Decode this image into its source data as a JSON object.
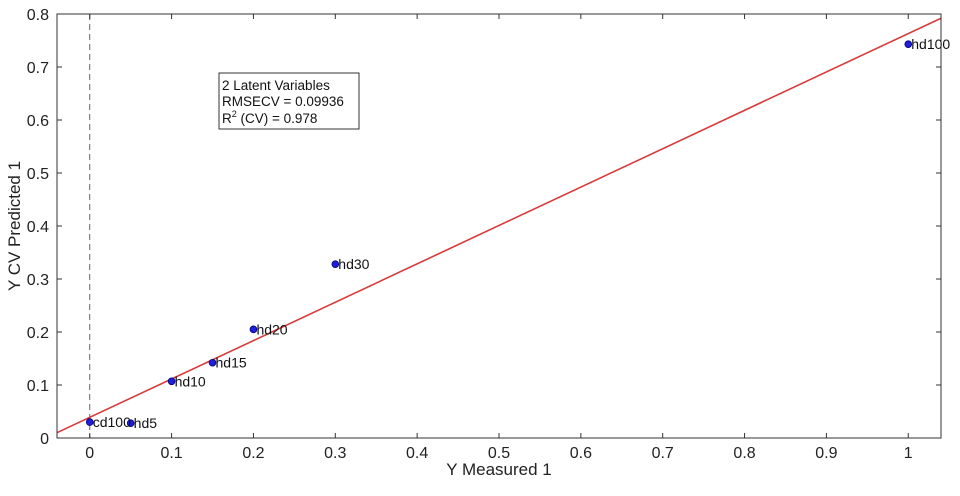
{
  "chart_data": {
    "type": "scatter",
    "title": "",
    "xlabel": "Y Measured 1",
    "ylabel": "Y CV Predicted 1",
    "xlim": [
      -0.04,
      1.04
    ],
    "ylim": [
      0,
      0.8
    ],
    "xticks": [
      0,
      0.1,
      0.2,
      0.3,
      0.4,
      0.5,
      0.6,
      0.7,
      0.8,
      0.9,
      1
    ],
    "yticks": [
      0,
      0.1,
      0.2,
      0.3,
      0.4,
      0.5,
      0.6,
      0.7,
      0.8
    ],
    "grid": false,
    "colors": {
      "points": "#1f1fd6",
      "fit_line": "#d93a3a",
      "zero_line": "#666666",
      "axes": "#333333"
    },
    "points": [
      {
        "label": "cd100",
        "x": 0,
        "y": 0.03
      },
      {
        "label": "hd5",
        "x": 0.05,
        "y": 0.028
      },
      {
        "label": "hd10",
        "x": 0.1,
        "y": 0.107
      },
      {
        "label": "hd15",
        "x": 0.15,
        "y": 0.142
      },
      {
        "label": "hd20",
        "x": 0.2,
        "y": 0.205
      },
      {
        "label": "hd30",
        "x": 0.3,
        "y": 0.328
      },
      {
        "label": "hd100",
        "x": 1,
        "y": 0.743
      }
    ],
    "fit_line": {
      "x": [
        -0.04,
        1.04
      ],
      "y": [
        0.01,
        0.792
      ]
    },
    "zero_line_x": 0,
    "stats": {
      "line1": "2 Latent Variables",
      "line2": "RMSECV = 0.09936",
      "line3_prefix": "R",
      "line3_sup": "2",
      "line3_suffix": " (CV) = 0.978"
    }
  }
}
